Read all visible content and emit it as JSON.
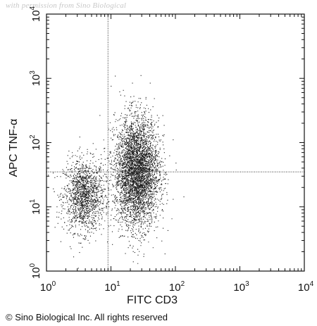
{
  "watermark": "with permission from Sino Biological",
  "copyright": "© Sino Biological Inc. All rights reserved",
  "chart_data": {
    "type": "scatter",
    "title": "",
    "xlabel": "FITC CD3",
    "ylabel": "APC TNF-α",
    "x_scale": "log",
    "y_scale": "log",
    "xlim": [
      1,
      10000
    ],
    "ylim": [
      1,
      10000
    ],
    "x_ticks": [
      {
        "value": 1,
        "base": "10",
        "exp": "0"
      },
      {
        "value": 10,
        "base": "10",
        "exp": "1"
      },
      {
        "value": 100,
        "base": "10",
        "exp": "2"
      },
      {
        "value": 1000,
        "base": "10",
        "exp": "3"
      },
      {
        "value": 10000,
        "base": "10",
        "exp": "4"
      }
    ],
    "y_ticks": [
      {
        "value": 1,
        "base": "10",
        "exp": "0"
      },
      {
        "value": 10,
        "base": "10",
        "exp": "1"
      },
      {
        "value": 100,
        "base": "10",
        "exp": "2"
      },
      {
        "value": 1000,
        "base": "10",
        "exp": "3"
      },
      {
        "value": 10000,
        "base": "10",
        "exp": "4"
      }
    ],
    "quadrant_gate": {
      "x": 9,
      "y": 35
    },
    "populations": [
      {
        "center_x": 3.8,
        "center_y": 15,
        "spread_log_x": 0.16,
        "spread_log_y": 0.28,
        "events": 1500
      },
      {
        "center_x": 25,
        "center_y": 35,
        "spread_log_x": 0.17,
        "spread_log_y": 0.42,
        "events": 4200
      }
    ],
    "grid": false,
    "marker_color": "#1a1a1a"
  }
}
